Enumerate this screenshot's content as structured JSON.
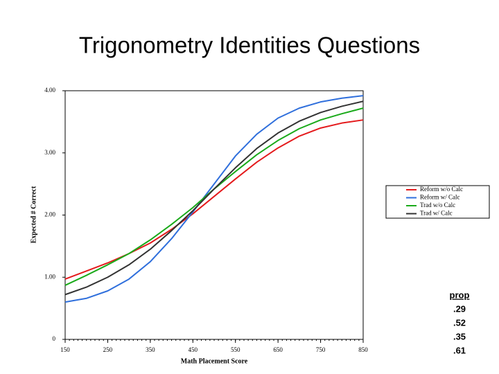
{
  "chart_data": {
    "type": "line",
    "title": "Trigonometry Identities Questions",
    "x_label": "Math Placement Score",
    "y_label": "Expected # Correct",
    "x": [
      150,
      200,
      250,
      300,
      350,
      400,
      450,
      500,
      550,
      600,
      650,
      700,
      750,
      800,
      850
    ],
    "series": [
      {
        "name": "Reform w/o Calc",
        "color": "#e41a1c",
        "values": [
          0.97,
          1.1,
          1.23,
          1.38,
          1.55,
          1.77,
          2.02,
          2.3,
          2.58,
          2.85,
          3.08,
          3.27,
          3.4,
          3.48,
          3.53
        ]
      },
      {
        "name": "Reform w/ Calc",
        "color": "#2f6fdc",
        "values": [
          0.6,
          0.66,
          0.78,
          0.97,
          1.25,
          1.62,
          2.05,
          2.5,
          2.95,
          3.3,
          3.56,
          3.72,
          3.82,
          3.88,
          3.92
        ]
      },
      {
        "name": "Trad w/o Calc",
        "color": "#1aaa1a",
        "values": [
          0.87,
          1.03,
          1.2,
          1.38,
          1.6,
          1.85,
          2.12,
          2.42,
          2.7,
          2.97,
          3.2,
          3.39,
          3.53,
          3.63,
          3.72
        ]
      },
      {
        "name": "Trad w/ Calc",
        "color": "#333333",
        "values": [
          0.72,
          0.84,
          1.0,
          1.2,
          1.45,
          1.75,
          2.07,
          2.42,
          2.76,
          3.07,
          3.32,
          3.51,
          3.65,
          3.75,
          3.83
        ]
      }
    ],
    "xlim": [
      150,
      850
    ],
    "xticks": [
      150,
      250,
      350,
      450,
      550,
      650,
      750,
      850
    ],
    "ylim": [
      0,
      4
    ],
    "yticks": [
      0,
      {
        "value": 1,
        "label": "1.00"
      },
      {
        "value": 2,
        "label": "2.00"
      },
      {
        "value": 3,
        "label": "3.00"
      },
      {
        "value": 4,
        "label": "4.00"
      }
    ],
    "legend": "right",
    "prop_table": {
      "header": "prop",
      "values": [
        0.29,
        0.52,
        0.35,
        0.61
      ],
      "value_labels": [
        ".29",
        ".52",
        ".35",
        ".61"
      ],
      "colors": [
        "#ff1a1a",
        "#1a1acc",
        "#33dd33",
        "#111111"
      ]
    }
  }
}
